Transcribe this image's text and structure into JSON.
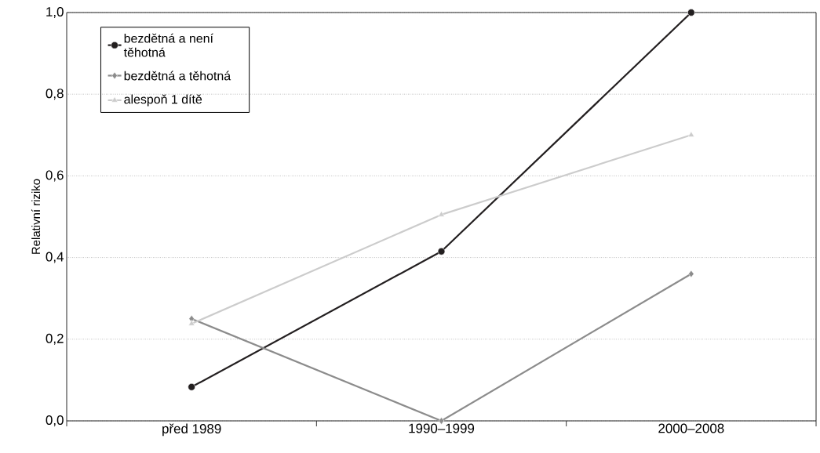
{
  "chart_data": {
    "type": "line",
    "ylabel": "Relativní riziko",
    "categories": [
      "před 1989",
      "1990–1999",
      "2000–2008"
    ],
    "series": [
      {
        "name": "bezdětná a není těhotná",
        "color": "#231f20",
        "marker": "circle",
        "values": [
          0.083,
          0.415,
          1.0
        ]
      },
      {
        "name": "bezdětná a těhotná",
        "color": "#8c8c8c",
        "marker": "diamond",
        "values": [
          0.25,
          0.0,
          0.36
        ]
      },
      {
        "name": "alespoň 1 dítě",
        "color": "#cccccc",
        "marker": "triangle",
        "values": [
          0.238,
          0.505,
          0.7
        ]
      }
    ],
    "ylim": [
      0,
      1.0
    ],
    "yticks": [
      {
        "value": 0,
        "label": "0,0"
      },
      {
        "value": 0.2,
        "label": "0,2"
      },
      {
        "value": 0.4,
        "label": "0,4"
      },
      {
        "value": 0.6,
        "label": "0,6"
      },
      {
        "value": 0.8,
        "label": "0,8"
      },
      {
        "value": 1.0,
        "label": "1,0"
      }
    ],
    "grid": "y",
    "legend": "top left",
    "line_style": "solid"
  }
}
